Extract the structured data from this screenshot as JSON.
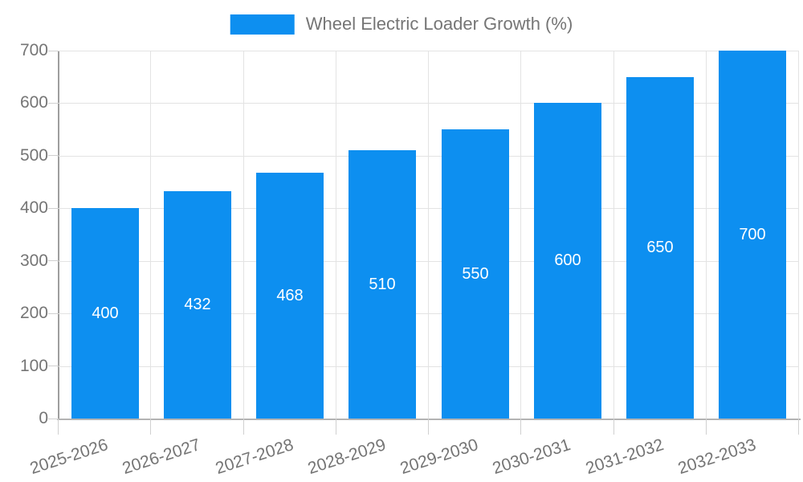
{
  "legend": {
    "label": "Wheel Electric Loader Growth (%)"
  },
  "colors": {
    "bar": "#0D8FF0",
    "grid": "#e3e3e3",
    "tick": "#d0d0d0",
    "y_axis_line": "#9e9e9e",
    "x_axis_line": "#b3b3b3",
    "axis_text": "#757575",
    "value_text": "#ffffff",
    "background": "#ffffff"
  },
  "chart_data": {
    "type": "bar",
    "title": "Wheel Electric Loader Growth (%)",
    "categories": [
      "2025-2026",
      "2026-2027",
      "2027-2028",
      "2028-2029",
      "2029-2030",
      "2030-2031",
      "2031-2032",
      "2032-2033"
    ],
    "values": [
      400,
      432,
      468,
      510,
      550,
      600,
      650,
      700
    ],
    "xlabel": "",
    "ylabel": "",
    "ylim": [
      0,
      700
    ],
    "yticks": [
      0,
      100,
      200,
      300,
      400,
      500,
      600,
      700
    ],
    "grid": true,
    "legend_position": "top-center",
    "value_labels": "inside-center",
    "x_label_rotation_deg": -18
  }
}
